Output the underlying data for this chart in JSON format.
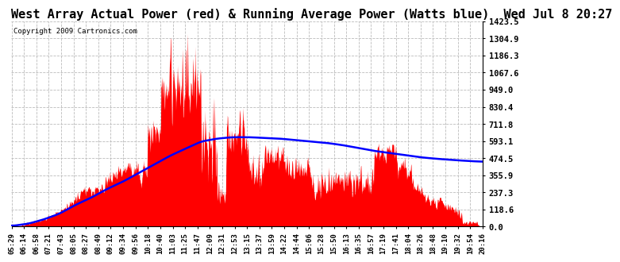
{
  "title": "West Array Actual Power (red) & Running Average Power (Watts blue)  Wed Jul 8 20:27",
  "copyright": "Copyright 2009 Cartronics.com",
  "y_ticks": [
    0.0,
    118.6,
    237.3,
    355.9,
    474.5,
    593.1,
    711.8,
    830.4,
    949.0,
    1067.6,
    1186.3,
    1304.9,
    1423.5
  ],
  "x_labels": [
    "05:29",
    "06:14",
    "06:58",
    "07:21",
    "07:43",
    "08:05",
    "08:27",
    "08:49",
    "09:12",
    "09:34",
    "09:56",
    "10:18",
    "10:40",
    "11:03",
    "11:25",
    "11:47",
    "12:09",
    "12:31",
    "12:53",
    "13:15",
    "13:37",
    "13:59",
    "14:22",
    "14:44",
    "15:06",
    "15:28",
    "15:50",
    "16:13",
    "16:35",
    "16:57",
    "17:19",
    "17:41",
    "18:04",
    "18:26",
    "18:48",
    "19:10",
    "19:32",
    "19:54",
    "20:16"
  ],
  "background_color": "#ffffff",
  "plot_bg_color": "#ffffff",
  "grid_color": "#bbbbbb",
  "actual_color": "#ff0000",
  "avg_color": "#0000ff",
  "title_fontsize": 11,
  "ymax": 1423.5,
  "ymin": 0.0,
  "avg_points_t": [
    5.48,
    6.0,
    6.5,
    7.0,
    7.5,
    8.0,
    8.5,
    9.0,
    9.5,
    10.0,
    10.5,
    11.0,
    11.5,
    12.0,
    12.5,
    13.0,
    13.5,
    14.0,
    14.5,
    15.0,
    15.5,
    16.0,
    16.5,
    17.0,
    17.5,
    18.0,
    18.5,
    19.0,
    19.5,
    20.0,
    20.45
  ],
  "avg_points_v": [
    5,
    20,
    50,
    90,
    150,
    200,
    260,
    310,
    370,
    430,
    490,
    540,
    590,
    610,
    620,
    620,
    615,
    610,
    600,
    590,
    580,
    565,
    545,
    525,
    510,
    495,
    480,
    470,
    462,
    455,
    450
  ]
}
